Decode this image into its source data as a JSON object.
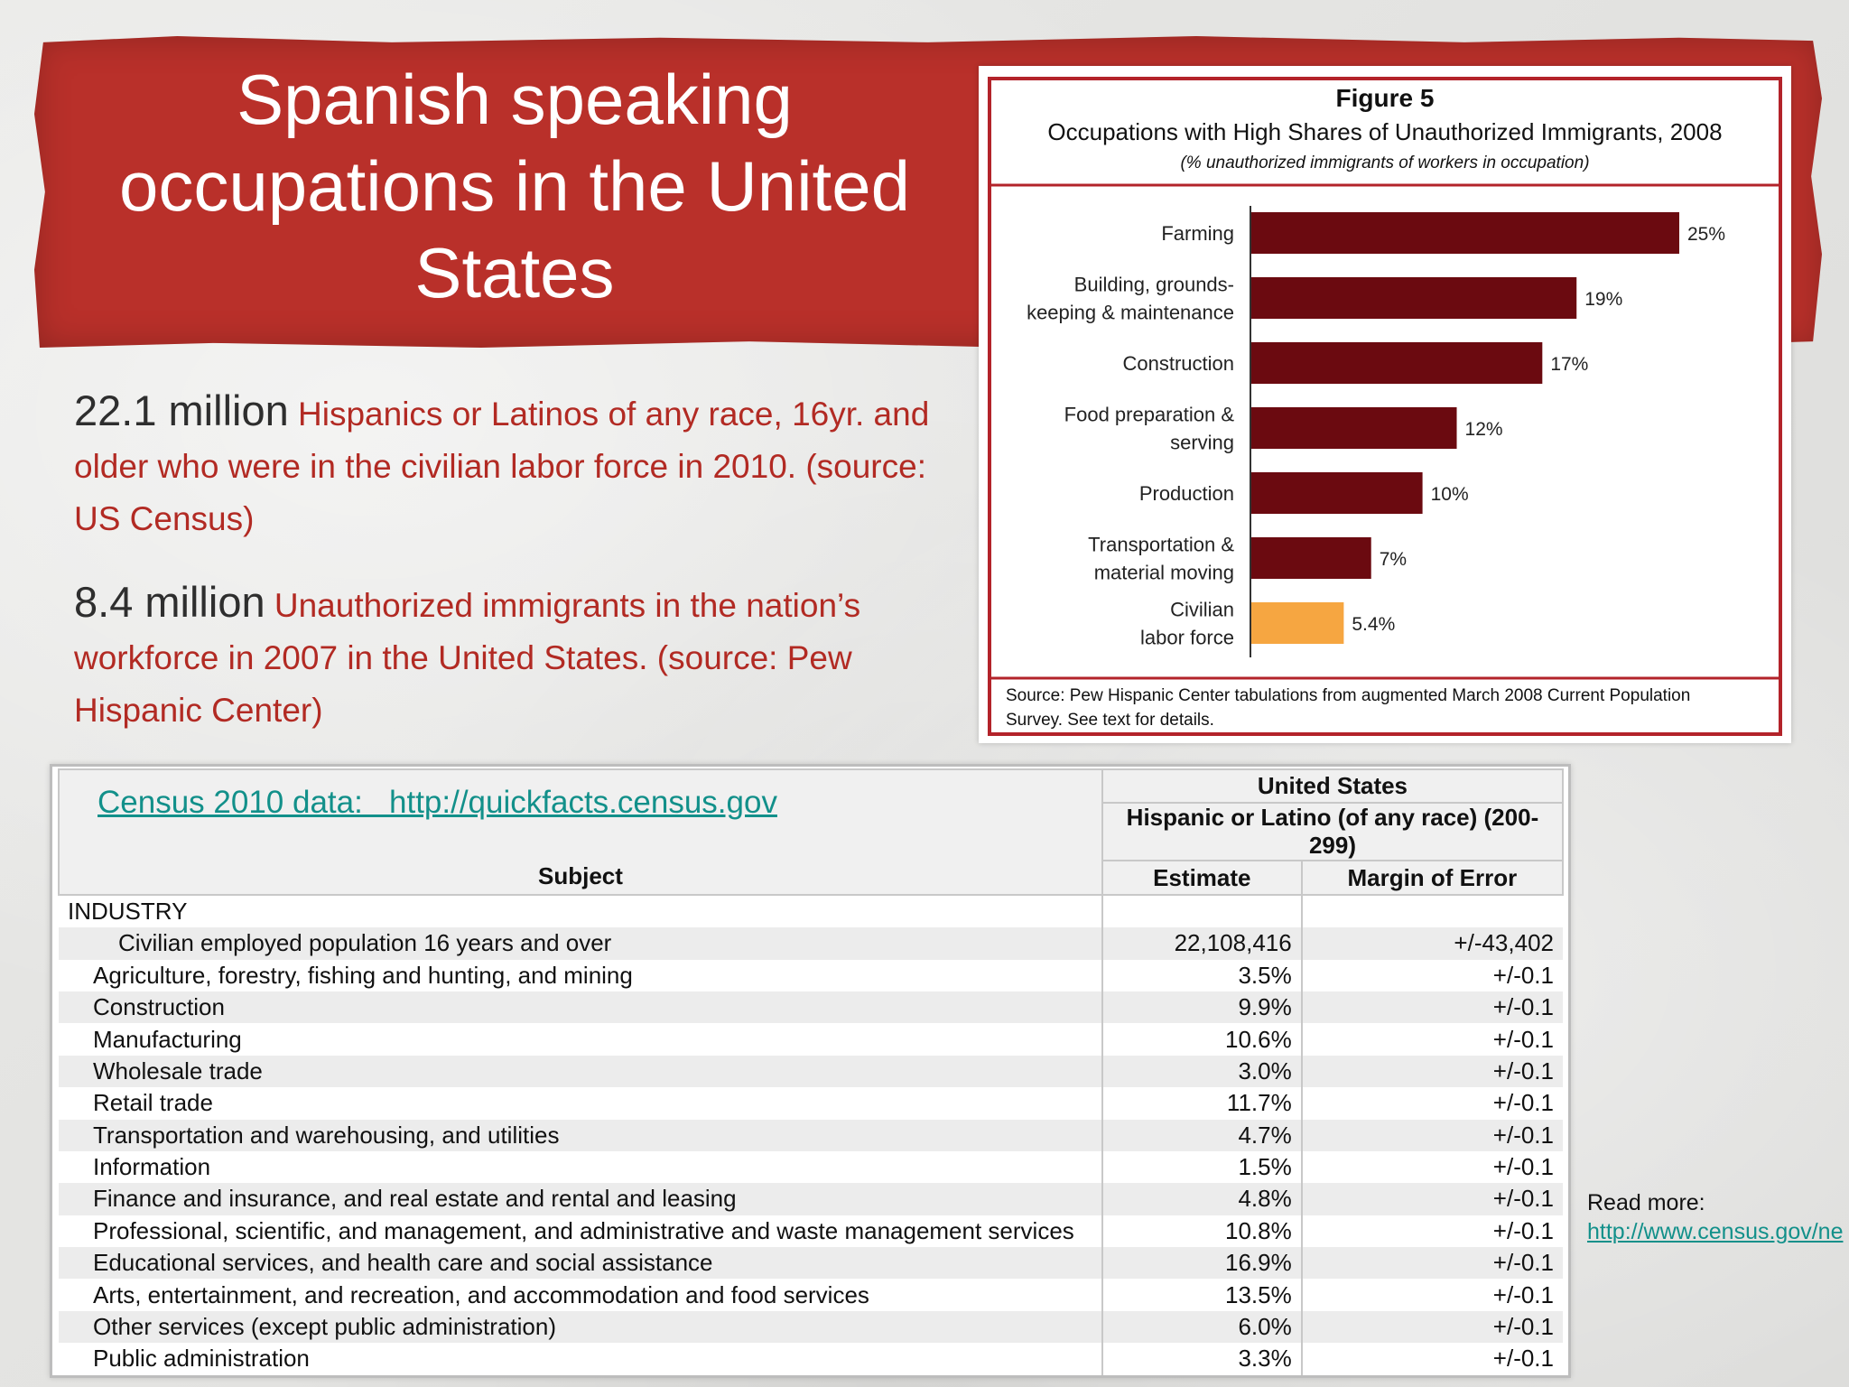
{
  "slide": {
    "title": "Spanish speaking occupations in the United States",
    "stats": [
      {
        "big": "22.1 million",
        "text": " Hispanics or Latinos of any race, 16yr. and older who were in the civilian labor force in 2010. (source: US Census)"
      },
      {
        "big": "8.4 million",
        "text": " Unauthorized immigrants in the nation’s workforce in 2007 in the United States. (source: Pew Hispanic Center)"
      }
    ],
    "read_more_label": "Read more:",
    "read_more_link": "http://www.census.gov/ne",
    "colors": {
      "banner": "#b9302a",
      "text_red": "#b22a23",
      "link": "#12908a",
      "bar_dark": "#6b0a10",
      "bar_highlight": "#f6a641"
    }
  },
  "figure": {
    "label": "Figure 5",
    "title": "Occupations with High Shares of Unauthorized Immigrants, 2008",
    "subtitle": "(% unauthorized immigrants of workers in occupation)",
    "source_line1": "Source:  Pew Hispanic Center tabulations from augmented March 2008 Current Population",
    "source_line2": "Survey.  See text for details."
  },
  "chart_data": {
    "type": "bar",
    "orientation": "horizontal",
    "categories": [
      [
        "Farming"
      ],
      [
        "Building, grounds-",
        "keeping & maintenance"
      ],
      [
        "Construction"
      ],
      [
        "Food preparation &",
        "serving"
      ],
      [
        "Production"
      ],
      [
        "Transportation &",
        "material moving"
      ],
      [
        "Civilian",
        "labor force"
      ]
    ],
    "values": [
      25,
      19,
      17,
      12,
      10,
      7,
      5.4
    ],
    "value_labels": [
      "25%",
      "19%",
      "17%",
      "12%",
      "10%",
      "7%",
      "5.4%"
    ],
    "highlight_index": 6,
    "xlim": [
      0,
      25
    ]
  },
  "census": {
    "link_text": "Census 2010 data:   http://quickfacts.census.gov",
    "header_top": "United States",
    "header_group": "Hispanic or Latino (of any race) (200-299)",
    "col_subject": "Subject",
    "col_estimate": "Estimate",
    "col_moe": "Margin of Error",
    "section": "INDUSTRY",
    "rows": [
      {
        "label": "Civilian employed population 16 years and over",
        "estimate": "22,108,416",
        "moe": "+/-43,402"
      },
      {
        "label": "Agriculture, forestry, fishing and hunting, and mining",
        "estimate": "3.5%",
        "moe": "+/-0.1"
      },
      {
        "label": "Construction",
        "estimate": "9.9%",
        "moe": "+/-0.1"
      },
      {
        "label": "Manufacturing",
        "estimate": "10.6%",
        "moe": "+/-0.1"
      },
      {
        "label": "Wholesale trade",
        "estimate": "3.0%",
        "moe": "+/-0.1"
      },
      {
        "label": "Retail trade",
        "estimate": "11.7%",
        "moe": "+/-0.1"
      },
      {
        "label": "Transportation and warehousing, and utilities",
        "estimate": "4.7%",
        "moe": "+/-0.1"
      },
      {
        "label": "Information",
        "estimate": "1.5%",
        "moe": "+/-0.1"
      },
      {
        "label": "Finance and insurance, and real estate and rental and leasing",
        "estimate": "4.8%",
        "moe": "+/-0.1"
      },
      {
        "label": "Professional, scientific, and management, and administrative and waste management services",
        "estimate": "10.8%",
        "moe": "+/-0.1"
      },
      {
        "label": "Educational services, and health care and social assistance",
        "estimate": "16.9%",
        "moe": "+/-0.1"
      },
      {
        "label": "Arts, entertainment, and recreation, and accommodation and food services",
        "estimate": "13.5%",
        "moe": "+/-0.1"
      },
      {
        "label": "Other services (except public administration)",
        "estimate": "6.0%",
        "moe": "+/-0.1"
      },
      {
        "label": "Public administration",
        "estimate": "3.3%",
        "moe": "+/-0.1"
      }
    ]
  }
}
